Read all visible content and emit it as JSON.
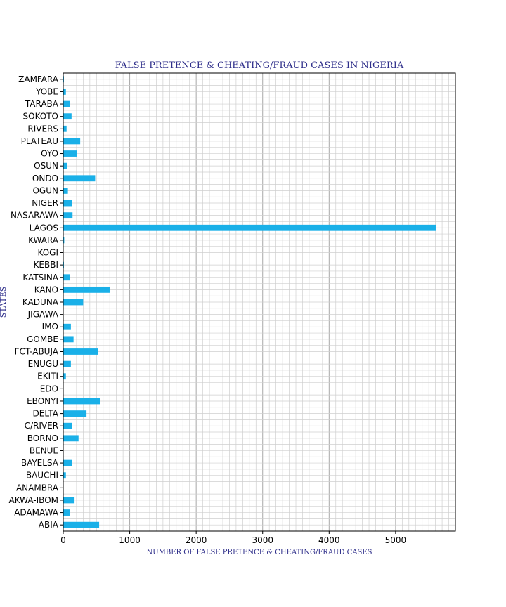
{
  "chart_data": {
    "type": "bar",
    "orientation": "horizontal",
    "title": "FALSE PRETENCE & CHEATING/FRAUD CASES IN NIGERIA",
    "xlabel": "NUMBER OF FALSE PRETENCE & CHEATING/FRAUD CASES",
    "ylabel": "STATES",
    "xlim": [
      0,
      5900
    ],
    "xticks": [
      0,
      1000,
      2000,
      3000,
      4000,
      5000
    ],
    "grid": true,
    "bar_color": "#1ab0e8",
    "categories": [
      "ABIA",
      "ADAMAWA",
      "AKWA-IBOM",
      "ANAMBRA",
      "BAUCHI",
      "BAYELSA",
      "BENUE",
      "BORNO",
      "C/RIVER",
      "DELTA",
      "EBONYI",
      "EDO",
      "EKITI",
      "ENUGU",
      "FCT-ABUJA",
      "GOMBE",
      "IMO",
      "JIGAWA",
      "KADUNA",
      "KANO",
      "KATSINA",
      "KEBBI",
      "KOGI",
      "KWARA",
      "LAGOS",
      "NASARAWA",
      "NIGER",
      "OGUN",
      "ONDO",
      "OSUN",
      "OYO",
      "PLATEAU",
      "RIVERS",
      "SOKOTO",
      "TARABA",
      "YOBE",
      "ZAMFARA"
    ],
    "values": [
      540,
      100,
      170,
      0,
      40,
      135,
      5,
      230,
      130,
      350,
      560,
      0,
      40,
      115,
      520,
      155,
      115,
      0,
      300,
      700,
      100,
      10,
      0,
      15,
      5610,
      140,
      130,
      70,
      480,
      60,
      210,
      255,
      50,
      125,
      100,
      40,
      10
    ]
  }
}
